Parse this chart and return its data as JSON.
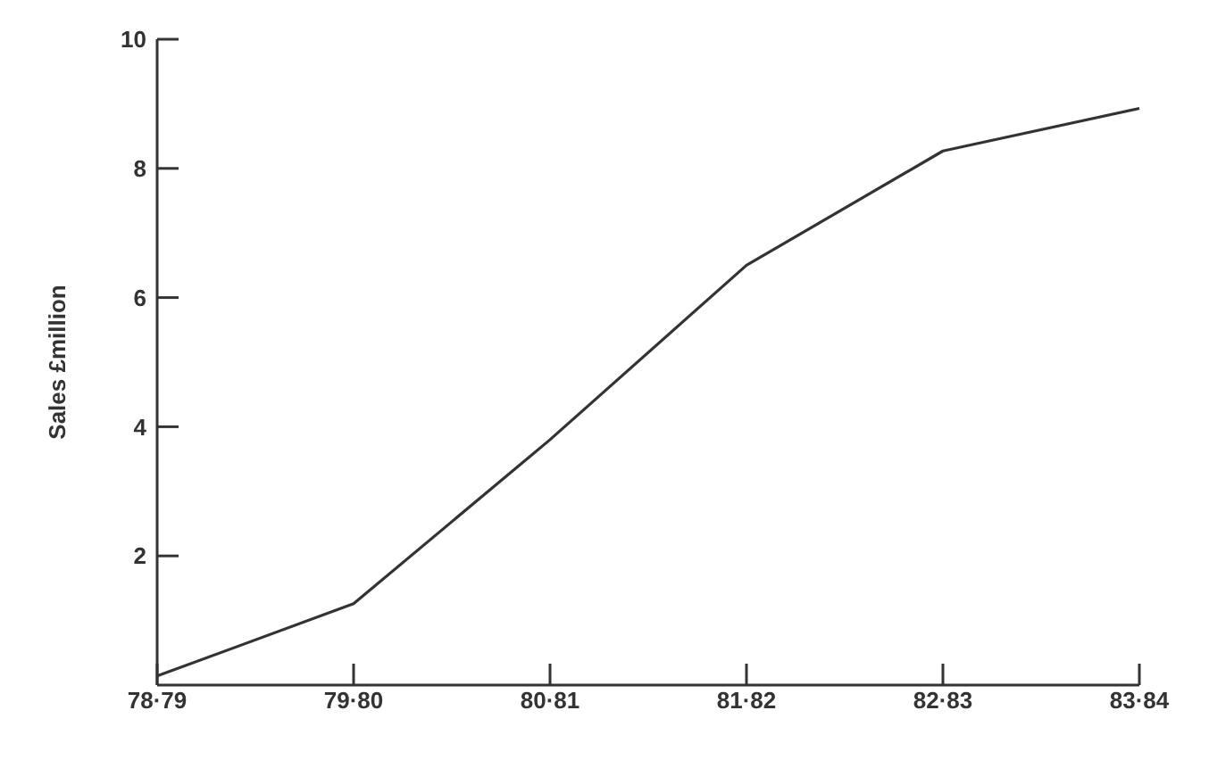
{
  "chart_data": {
    "type": "line",
    "ylabel": "Sales £million",
    "categories": [
      "78·79",
      "79·80",
      "80·81",
      "81·82",
      "82·83",
      "83·84"
    ],
    "series": [
      {
        "color": "#333333",
        "values": [
          0.14,
          1.26,
          3.8,
          6.5,
          8.27,
          8.93
        ]
      }
    ],
    "ylim": [
      0,
      10
    ],
    "yticks": [
      2,
      4,
      6,
      8,
      10
    ],
    "grid": false,
    "marker": "none",
    "line_style": "solid"
  }
}
